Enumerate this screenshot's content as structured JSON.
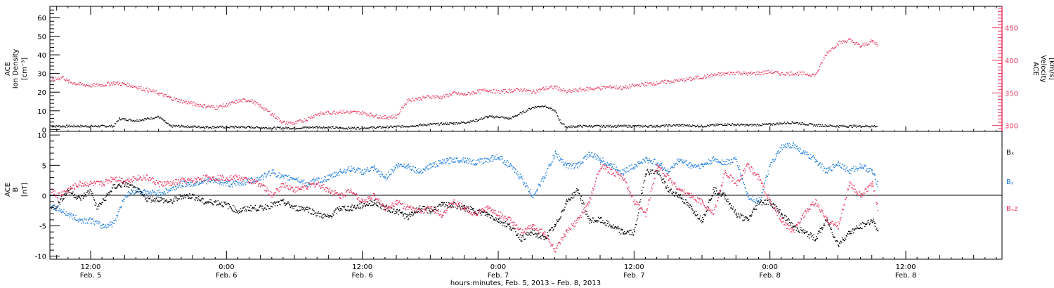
{
  "colors": {
    "black": "#000000",
    "blue": "#1f7de0",
    "pink": "#e8365f",
    "axis": "#000000",
    "right_axis": "#e8365f"
  },
  "xaxis": {
    "title": "hours:minutes, Feb. 5, 2013 – Feb. 8, 2013",
    "range_hours": [
      8.4,
      92.5
    ],
    "ticks": [
      {
        "hour": 12,
        "time": "12:00",
        "date": "Feb. 5"
      },
      {
        "hour": 24,
        "time": "0:00",
        "date": "Feb. 6"
      },
      {
        "hour": 36,
        "time": "12:00",
        "date": "Feb. 6"
      },
      {
        "hour": 48,
        "time": "0:00",
        "date": "Feb. 7"
      },
      {
        "hour": 60,
        "time": "12:00",
        "date": "Feb. 7"
      },
      {
        "hour": 72,
        "time": "0:00",
        "date": "Feb. 8"
      },
      {
        "hour": 84,
        "time": "12:00",
        "date": "Feb. 8"
      }
    ]
  },
  "panel1": {
    "left_label": [
      "ACE",
      "Ion Density",
      "[cm⁻³]"
    ],
    "right_label": [
      "ACE",
      "Velocity",
      "[km/s]"
    ],
    "left_ticks": [
      "0",
      "10",
      "20",
      "30",
      "40",
      "50",
      "60"
    ],
    "right_ticks": [
      "300",
      "350",
      "400",
      "450"
    ]
  },
  "panel2": {
    "left_label": [
      "ACE",
      "B",
      "[nT]"
    ],
    "left_ticks": [
      "-10",
      "-5",
      "0",
      "5",
      "10"
    ],
    "legend": [
      "Bₓ",
      "Bᵧ",
      "Bₓz"
    ]
  },
  "chart_data": [
    {
      "type": "scatter",
      "title": "",
      "x_unit": "hours since 2013-02-05 00:00",
      "ylim_left": [
        -1,
        66
      ],
      "ylim_right": [
        291,
        483
      ],
      "series": [
        {
          "name": "",
          "axis": "left",
          "color": "black",
          "x": [
            8.5,
            10,
            12,
            14,
            14.5,
            16,
            17,
            18,
            19,
            20,
            22,
            24,
            26,
            28,
            30,
            32,
            34,
            36,
            38,
            40,
            42,
            44,
            45,
            46,
            47,
            48,
            49,
            50,
            51,
            52,
            53,
            53.5,
            54,
            55,
            56,
            58,
            60,
            62,
            64,
            66,
            68,
            70,
            72,
            74,
            76,
            78,
            80,
            81.5
          ],
          "y": [
            2,
            2,
            2,
            2,
            6,
            5,
            6,
            7,
            2,
            2,
            1.5,
            1.5,
            1.5,
            1,
            1,
            1.5,
            1,
            1,
            1.5,
            2,
            3,
            3.5,
            4,
            5,
            7,
            7,
            6,
            9,
            12,
            13,
            10,
            4,
            1.5,
            2,
            2,
            2,
            2,
            2,
            2.5,
            2,
            3,
            2.5,
            3,
            4,
            2.5,
            2,
            2,
            2
          ]
        },
        {
          "name": "",
          "axis": "right",
          "color": "pink",
          "x": [
            8.5,
            9.5,
            10,
            11,
            12,
            13,
            14,
            15,
            16,
            17,
            18,
            19,
            20,
            21,
            22,
            23,
            24,
            25,
            26,
            26.5,
            27,
            28,
            29,
            30,
            31,
            32,
            33,
            34,
            35,
            36,
            37,
            38,
            39,
            40,
            41,
            42,
            43,
            44,
            45,
            46,
            47,
            48,
            49,
            50,
            51,
            52,
            53,
            54,
            55,
            56,
            57,
            58,
            59,
            60,
            61,
            62,
            63,
            64,
            65,
            66,
            67,
            68,
            69,
            70,
            71,
            72,
            73,
            74,
            75,
            76,
            77,
            78,
            79,
            80,
            81,
            81.5
          ],
          "y": [
            370,
            375,
            368,
            364,
            362,
            363,
            366,
            364,
            360,
            355,
            350,
            343,
            338,
            334,
            331,
            328,
            332,
            338,
            340,
            335,
            330,
            318,
            305,
            304,
            310,
            318,
            320,
            322,
            321,
            320,
            316,
            313,
            315,
            340,
            342,
            345,
            344,
            350,
            348,
            352,
            355,
            352,
            354,
            356,
            352,
            357,
            360,
            352,
            355,
            357,
            358,
            360,
            358,
            362,
            364,
            366,
            368,
            370,
            372,
            375,
            378,
            380,
            382,
            380,
            381,
            383,
            380,
            381,
            380,
            378,
            412,
            427,
            432,
            422,
            430,
            425
          ]
        }
      ]
    },
    {
      "type": "scatter",
      "title": "",
      "x_unit": "hours since 2013-02-05 00:00",
      "ylim": [
        -10.5,
        10.6
      ],
      "series": [
        {
          "name": "Bx",
          "color": "black",
          "x": [
            8.5,
            9,
            10,
            11,
            12,
            12.5,
            13,
            14,
            15,
            16,
            17,
            18,
            19,
            20,
            21,
            22,
            23,
            24,
            25,
            26,
            27,
            28,
            29,
            30,
            31,
            32,
            33,
            34,
            35,
            36,
            37,
            38,
            39,
            40,
            41,
            42,
            43,
            44,
            45,
            46,
            47,
            48,
            49,
            50,
            51,
            52,
            53,
            54,
            55,
            56,
            57,
            58,
            59,
            60,
            61,
            62,
            63,
            64,
            65,
            66,
            67,
            68,
            69,
            70,
            71,
            72,
            73,
            74,
            75,
            76,
            77,
            78,
            79,
            80,
            81,
            81.5
          ],
          "y": [
            -2,
            -1.5,
            1,
            -0.5,
            1,
            -2,
            -1,
            1.5,
            2,
            1,
            -0.5,
            -0.5,
            -1,
            0,
            0,
            -1,
            -1,
            -1.5,
            -2.5,
            -2,
            -2,
            -1.5,
            -1,
            -2,
            -2,
            -3,
            -3.5,
            -2,
            -2,
            -1.5,
            -1,
            -2,
            -2.5,
            -3.5,
            -2,
            -2.5,
            -1.5,
            -1.5,
            -2,
            -2.5,
            -3,
            -4,
            -5,
            -7,
            -6,
            -7,
            -5,
            -1,
            1,
            -4,
            -4,
            -5,
            -6,
            -6,
            4,
            4,
            1,
            0,
            -2,
            -4,
            1,
            0,
            -3,
            -4,
            -1,
            -1,
            -3,
            -5,
            -6,
            -7,
            -4,
            -8,
            -6,
            -5,
            -4,
            -5.5
          ]
        },
        {
          "name": "By",
          "color": "blue",
          "x": [
            8.5,
            9,
            10,
            11,
            12,
            13,
            14,
            15,
            16,
            17,
            18,
            19,
            20,
            21,
            22,
            23,
            24,
            25,
            26,
            27,
            28,
            29,
            30,
            31,
            32,
            33,
            34,
            35,
            36,
            37,
            38,
            39,
            40,
            41,
            42,
            43,
            44,
            45,
            46,
            47,
            48,
            49,
            50,
            51,
            52,
            53,
            54,
            55,
            56,
            57,
            58,
            59,
            60,
            61,
            62,
            63,
            64,
            65,
            66,
            67,
            68,
            69,
            70,
            71,
            72,
            73,
            74,
            75,
            76,
            77,
            78,
            79,
            80,
            81,
            81.5
          ],
          "y": [
            -2,
            -2,
            -3,
            -4,
            -4,
            -5,
            -4.5,
            0,
            1,
            0.5,
            0.5,
            1,
            2,
            2,
            2.5,
            2.5,
            2,
            2,
            2.5,
            3,
            4,
            3,
            3,
            2,
            2.5,
            3,
            4,
            4.5,
            4,
            4.5,
            3,
            5,
            5,
            4,
            5,
            5.5,
            6,
            6,
            5.5,
            6,
            6.5,
            5,
            3,
            0,
            3,
            7,
            5,
            5,
            7,
            6,
            5,
            4,
            5,
            6,
            5.5,
            4,
            6,
            5,
            5,
            6,
            5.5,
            6,
            0,
            -1,
            5,
            8,
            8.5,
            7,
            6,
            4,
            5.5,
            4,
            5,
            4,
            2
          ]
        },
        {
          "name": "Bz",
          "color": "pink",
          "x": [
            8.5,
            9,
            10,
            11,
            12,
            13,
            14,
            15,
            16,
            17,
            18,
            19,
            20,
            21,
            22,
            23,
            24,
            25,
            26,
            27,
            28,
            29,
            30,
            31,
            32,
            33,
            34,
            35,
            36,
            37,
            38,
            39,
            40,
            41,
            42,
            43,
            44,
            45,
            46,
            47,
            48,
            49,
            50,
            51,
            52,
            53,
            54,
            55,
            56,
            57,
            58,
            59,
            60,
            61,
            62,
            63,
            64,
            65,
            66,
            67,
            68,
            69,
            70,
            71,
            72,
            73,
            74,
            75,
            76,
            77,
            78,
            79,
            80,
            81,
            81.5
          ],
          "y": [
            1,
            0,
            1,
            2,
            2,
            2,
            3,
            2.5,
            3,
            3,
            2,
            2,
            2.5,
            2.5,
            3,
            3,
            3,
            3,
            2.5,
            2,
            0,
            2,
            1,
            1.5,
            2,
            1,
            0,
            1,
            -1,
            0,
            -2,
            -1,
            -2,
            -2.5,
            -2,
            -3,
            -1,
            -2,
            -3,
            -2,
            -3,
            -4,
            -6,
            -5,
            -6,
            -9,
            -6,
            -4,
            -1,
            5,
            4,
            3,
            -1,
            -3,
            5,
            3,
            1,
            0,
            -1,
            -3,
            4,
            2,
            5,
            3,
            -1,
            -4,
            -6,
            -3,
            -1,
            -4,
            -5,
            2,
            0,
            2,
            -2
          ]
        }
      ]
    }
  ]
}
